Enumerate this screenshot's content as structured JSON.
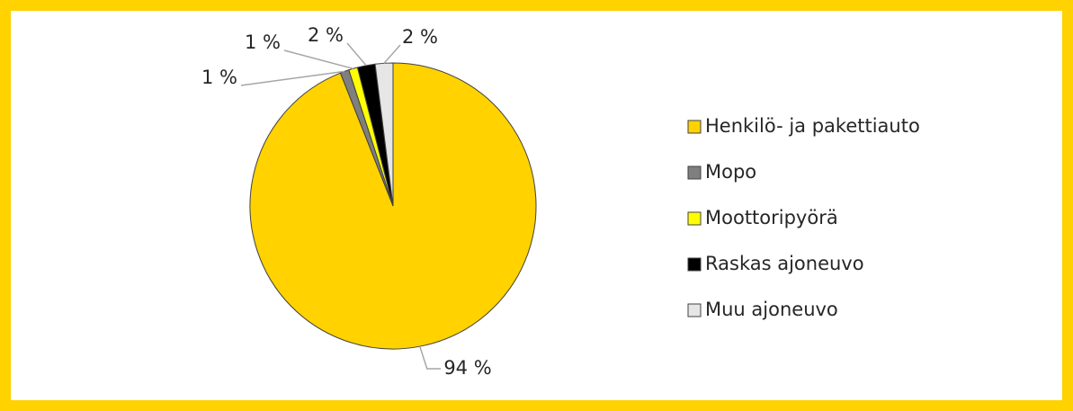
{
  "chart_data": {
    "type": "pie",
    "categories": [
      "Henkilö- ja pakettiauto",
      "Mopo",
      "Moottoripyörä",
      "Raskas ajoneuvo",
      "Muu ajoneuvo"
    ],
    "values": [
      94,
      1,
      1,
      2,
      2
    ],
    "value_labels": [
      "94 %",
      "1 %",
      "1 %",
      "2 %",
      "2 %"
    ],
    "colors": [
      "#FFD200",
      "#7F7F7F",
      "#FFFF00",
      "#000000",
      "#E7E6E6"
    ]
  }
}
